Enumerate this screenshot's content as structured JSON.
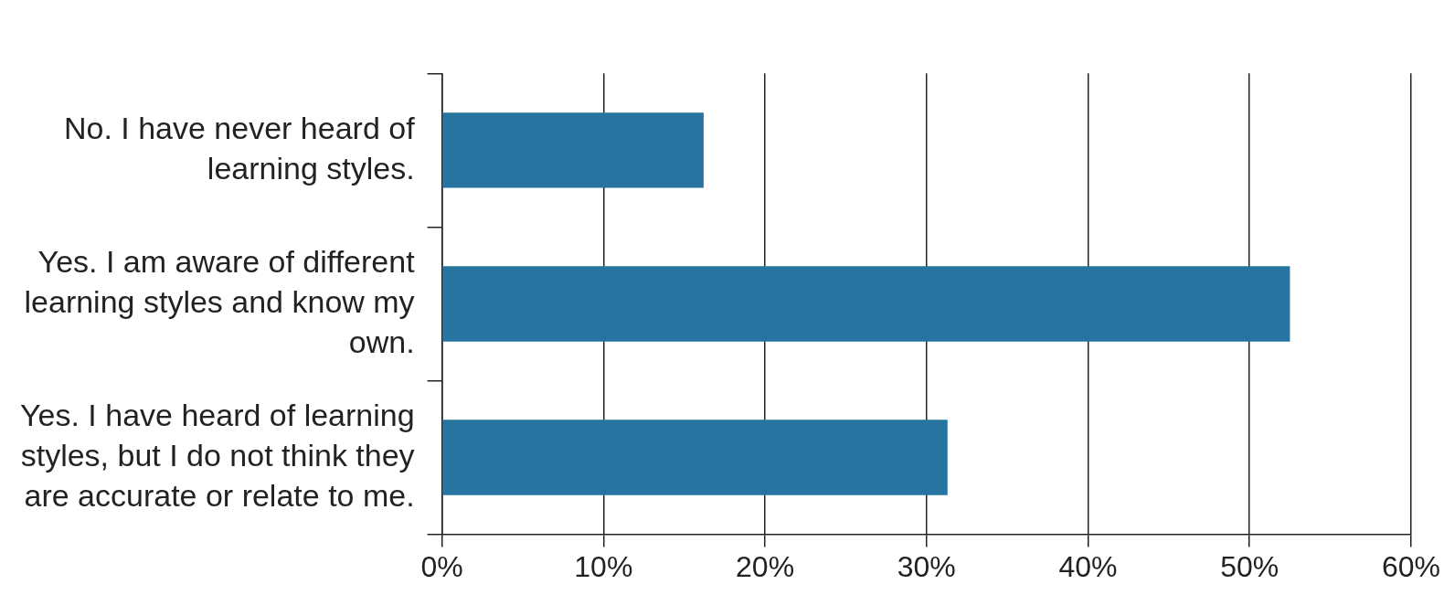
{
  "chart_data": {
    "type": "bar",
    "orientation": "horizontal",
    "categories": [
      "No. I have never heard of learning styles.",
      "Yes. I am aware of different learning styles and know my own.",
      "Yes. I have heard of learning styles, but I do not think they are accurate or relate to me."
    ],
    "values": [
      16.2,
      52.5,
      31.3
    ],
    "color": "#2774a0",
    "xlim": [
      0,
      60
    ],
    "xticks": [
      {
        "value": 0,
        "label": "0%"
      },
      {
        "value": 10,
        "label": "10%"
      },
      {
        "value": 20,
        "label": "20%"
      },
      {
        "value": 30,
        "label": "30%"
      },
      {
        "value": 40,
        "label": "40%"
      },
      {
        "value": 50,
        "label": "50%"
      },
      {
        "value": 60,
        "label": "60%"
      }
    ],
    "grid": true,
    "data_labels": false
  }
}
